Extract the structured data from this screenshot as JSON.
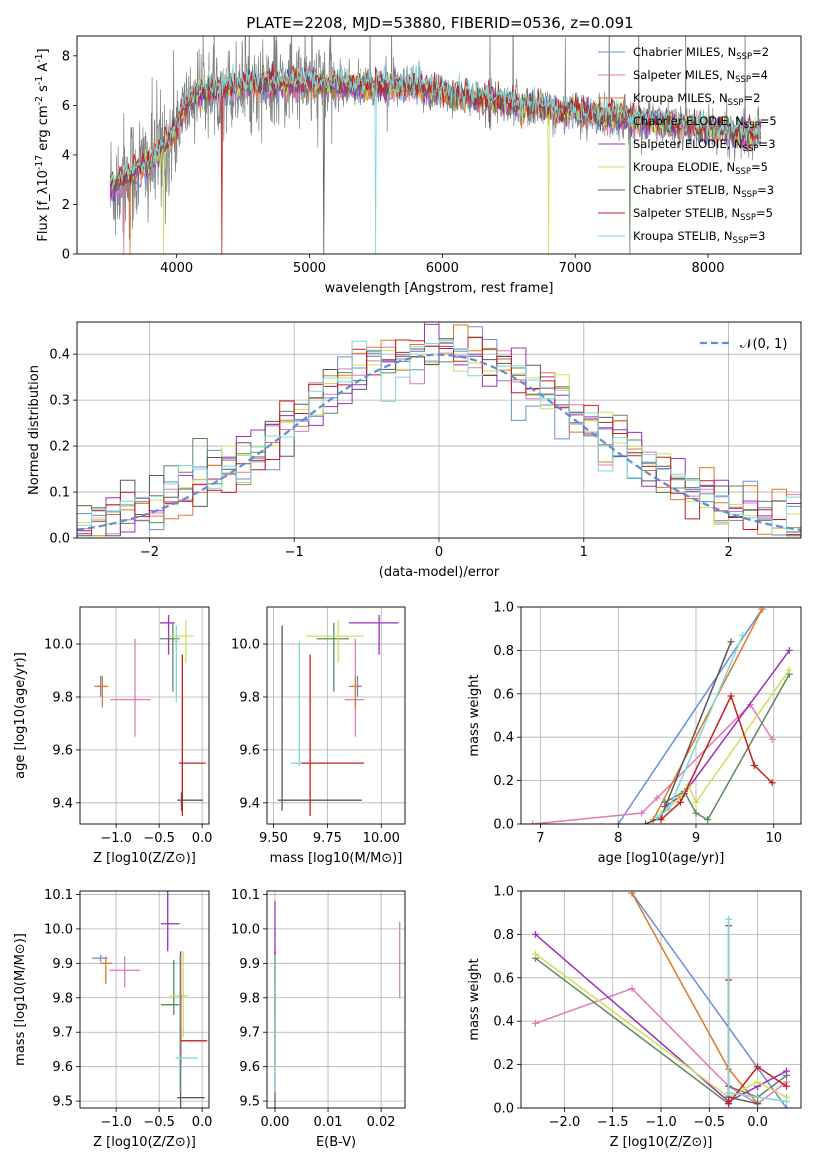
{
  "figure_title": "PLATE=2208, MJD=53880, FIBERID=0536, z=0.091",
  "colors": [
    "#6a8fd6",
    "#e07ab6",
    "#e0782a",
    "#5d8a5d",
    "#9b30c0",
    "#cde05a",
    "#5a5a5a",
    "#c42020",
    "#7fd8d8"
  ],
  "series_names": [
    "Chabrier MILES, N_SSP=2",
    "Salpeter MILES, N_SSP=4",
    "Kroupa MILES, N_SSP=2",
    "Chabrier ELODIE, N_SSP=5",
    "Salpeter ELODIE, N_SSP=3",
    "Kroupa ELODIE, N_SSP=5",
    "Chabrier STELIB, N_SSP=3",
    "Salpeter STELIB, N_SSP=5",
    "Kroupa STELIB, N_SSP=3"
  ],
  "chart_data": [
    {
      "id": "spectrum",
      "type": "line",
      "xlabel": "wavelength [Angstrom, rest frame]",
      "ylabel": "Flux [f_λ10^-17 erg cm^-2 s^-1 A^-1]",
      "xlim": [
        3250,
        8700
      ],
      "ylim": [
        0,
        8.8
      ],
      "xticks": [
        4000,
        5000,
        6000,
        7000,
        8000
      ],
      "yticks": [
        0,
        2,
        4,
        6,
        8
      ],
      "grid": false,
      "legend": "upper right",
      "continuum_knots": [
        [
          3500,
          2.7
        ],
        [
          3650,
          3.2
        ],
        [
          3800,
          3.6
        ],
        [
          3950,
          4.6
        ],
        [
          4050,
          5.8
        ],
        [
          4150,
          6.5
        ],
        [
          4500,
          6.8
        ],
        [
          4900,
          6.9
        ],
        [
          5300,
          6.8
        ],
        [
          5800,
          6.7
        ],
        [
          6200,
          6.3
        ],
        [
          6600,
          6.0
        ],
        [
          7000,
          5.7
        ],
        [
          7500,
          5.4
        ],
        [
          8000,
          5.0
        ],
        [
          8400,
          4.8
        ]
      ],
      "observed_color": "#808080"
    },
    {
      "id": "residual-histogram",
      "type": "histogram",
      "xlabel": "(data-model)/error",
      "ylabel": "Normed distribution",
      "xlim": [
        -2.5,
        2.5
      ],
      "ylim": [
        0,
        0.47
      ],
      "xticks": [
        -2,
        -1,
        0,
        1,
        2
      ],
      "yticks": [
        0.0,
        0.1,
        0.2,
        0.3,
        0.4
      ],
      "bin_width": 0.1,
      "grid": true,
      "legend": "upper right",
      "reference_curve": {
        "name": "𝒩(0, 1)",
        "mean": 0,
        "sigma": 1,
        "color": "#5b8fd6"
      }
    },
    {
      "id": "age-vs-Z",
      "type": "errorbar",
      "xlabel": "Z [log10(Z/Z⊙)]",
      "ylabel": "age [log10(age/yr)]",
      "xlim": [
        -1.42,
        0.08
      ],
      "ylim": [
        9.32,
        10.14
      ],
      "xticks": [
        -1.0,
        -0.5,
        0.0
      ],
      "yticks": [
        9.4,
        9.6,
        9.8,
        10.0
      ],
      "grid": true,
      "points": [
        {
          "x": -1.18,
          "y": 9.84,
          "xerr": [
            0.07,
            0.07
          ],
          "yerr": [
            0.04,
            0.04
          ]
        },
        {
          "x": -0.78,
          "y": 9.79,
          "xerr": [
            0.29,
            0.18
          ],
          "yerr": [
            0.14,
            0.23
          ]
        },
        {
          "x": -1.16,
          "y": 9.84,
          "xerr": [
            0.09,
            0.07
          ],
          "yerr": [
            0.08,
            0.04
          ]
        },
        {
          "x": -0.34,
          "y": 10.02,
          "xerr": [
            0.15,
            0.08
          ],
          "yerr": [
            0.2,
            0.06
          ]
        },
        {
          "x": -0.39,
          "y": 10.08,
          "xerr": [
            0.1,
            0.07
          ],
          "yerr": [
            0.12,
            0.03
          ]
        },
        {
          "x": -0.19,
          "y": 10.03,
          "xerr": [
            0.2,
            0.09
          ],
          "yerr": [
            0.1,
            0.06
          ]
        },
        {
          "x": -0.24,
          "y": 9.41,
          "xerr": [
            0.05,
            0.25
          ],
          "yerr": [
            0.04,
            0.03
          ]
        },
        {
          "x": -0.23,
          "y": 9.55,
          "xerr": [
            0.04,
            0.27
          ],
          "yerr": [
            0.2,
            0.41
          ]
        },
        {
          "x": -0.3,
          "y": 10.01,
          "xerr": [
            0.02,
            0.02
          ],
          "yerr": [
            0.23,
            0.06
          ]
        }
      ]
    },
    {
      "id": "age-vs-mass",
      "type": "errorbar",
      "xlabel": "mass [log10(M/M⊙)]",
      "ylabel": "",
      "xlim": [
        9.47,
        10.11
      ],
      "ylim": [
        9.32,
        10.14
      ],
      "xticks": [
        9.5,
        9.75,
        10.0
      ],
      "yticks": [
        9.4,
        9.6,
        9.8,
        10.0
      ],
      "grid": true,
      "points": [
        {
          "x": 9.89,
          "y": 9.84,
          "xerr": [
            0.01,
            0.02
          ],
          "yerr": [
            0.04,
            0.04
          ]
        },
        {
          "x": 9.88,
          "y": 9.79,
          "xerr": [
            0.05,
            0.04
          ],
          "yerr": [
            0.14,
            0.23
          ]
        },
        {
          "x": 9.88,
          "y": 9.84,
          "xerr": [
            0.03,
            0.02
          ],
          "yerr": [
            0.08,
            0.04
          ]
        },
        {
          "x": 9.78,
          "y": 10.02,
          "xerr": [
            0.08,
            0.07
          ],
          "yerr": [
            0.2,
            0.06
          ]
        },
        {
          "x": 9.99,
          "y": 10.08,
          "xerr": [
            0.14,
            0.09
          ],
          "yerr": [
            0.12,
            0.03
          ]
        },
        {
          "x": 9.8,
          "y": 10.03,
          "xerr": [
            0.15,
            0.12
          ],
          "yerr": [
            0.1,
            0.06
          ]
        },
        {
          "x": 9.54,
          "y": 9.41,
          "xerr": [
            0.02,
            0.37
          ],
          "yerr": [
            0.04,
            0.66
          ]
        },
        {
          "x": 9.67,
          "y": 9.55,
          "xerr": [
            0.05,
            0.25
          ],
          "yerr": [
            0.2,
            0.41
          ]
        },
        {
          "x": 9.62,
          "y": 9.55,
          "xerr": [
            0.04,
            0.01
          ],
          "yerr": [
            0.01,
            0.46
          ]
        }
      ]
    },
    {
      "id": "weight-vs-age",
      "type": "line",
      "xlabel": "age [log10(age/yr)]",
      "ylabel": "mass weight",
      "xlim": [
        6.75,
        10.35
      ],
      "ylim": [
        0,
        1
      ],
      "xticks": [
        7,
        8,
        9,
        10
      ],
      "yticks": [
        0.0,
        0.2,
        0.4,
        0.6,
        0.8,
        1.0
      ],
      "grid": true,
      "series": [
        {
          "ages": [
            8.0,
            9.85
          ],
          "weights": [
            0.0,
            0.99
          ]
        },
        {
          "ages": [
            6.9,
            8.3,
            8.5,
            9.7,
            9.98
          ],
          "weights": [
            0.0,
            0.05,
            0.12,
            0.55,
            0.39
          ]
        },
        {
          "ages": [
            8.45,
            9.85
          ],
          "weights": [
            0.02,
            0.99
          ]
        },
        {
          "ages": [
            8.6,
            8.85,
            9.0,
            9.15,
            10.2
          ],
          "weights": [
            0.1,
            0.15,
            0.05,
            0.02,
            0.69
          ]
        },
        {
          "ages": [
            8.6,
            8.85,
            10.2
          ],
          "weights": [
            0.08,
            0.14,
            0.8
          ]
        },
        {
          "ages": [
            8.55,
            8.8,
            8.9,
            9.0,
            10.2
          ],
          "weights": [
            0.05,
            0.12,
            0.18,
            0.1,
            0.71
          ]
        },
        {
          "ages": [
            8.35,
            8.55,
            9.45
          ],
          "weights": [
            0.0,
            0.03,
            0.84
          ]
        },
        {
          "ages": [
            8.55,
            8.8,
            9.45,
            9.75,
            9.98
          ],
          "weights": [
            0.02,
            0.1,
            0.59,
            0.27,
            0.19
          ]
        },
        {
          "ages": [
            8.5,
            8.65,
            9.6
          ],
          "weights": [
            0.03,
            0.07,
            0.87
          ]
        }
      ]
    },
    {
      "id": "mass-vs-Z",
      "type": "errorbar",
      "xlabel": "Z [log10(Z/Z⊙)]",
      "ylabel": "mass [log10(M/M⊙)]",
      "xlim": [
        -1.42,
        0.08
      ],
      "ylim": [
        9.48,
        10.11
      ],
      "xticks": [
        -1.0,
        -0.5,
        0.0
      ],
      "yticks": [
        9.5,
        9.6,
        9.7,
        9.8,
        9.9,
        10.0,
        10.1
      ],
      "grid": true,
      "points": [
        {
          "x": -1.18,
          "y": 9.915,
          "xerr": [
            0.1,
            0.08
          ],
          "yerr": [
            0.01,
            0.01
          ]
        },
        {
          "x": -0.9,
          "y": 9.88,
          "xerr": [
            0.18,
            0.18
          ],
          "yerr": [
            0.05,
            0.04
          ]
        },
        {
          "x": -1.12,
          "y": 9.9,
          "xerr": [
            0.07,
            0.07
          ],
          "yerr": [
            0.06,
            0.02
          ]
        },
        {
          "x": -0.33,
          "y": 9.78,
          "xerr": [
            0.15,
            0.08
          ],
          "yerr": [
            0.03,
            0.13
          ]
        },
        {
          "x": -0.4,
          "y": 10.015,
          "xerr": [
            0.08,
            0.14
          ],
          "yerr": [
            0.08,
            0.1
          ]
        },
        {
          "x": -0.22,
          "y": 9.805,
          "xerr": [
            0.16,
            0.06
          ],
          "yerr": [
            0.12,
            0.13
          ]
        },
        {
          "x": -0.25,
          "y": 9.51,
          "xerr": [
            0.04,
            0.28
          ],
          "yerr": [
            0.03,
            0.3
          ]
        },
        {
          "x": -0.25,
          "y": 9.675,
          "xerr": [
            0.02,
            0.31
          ],
          "yerr": [
            0.07,
            0.26
          ]
        },
        {
          "x": -0.26,
          "y": 9.625,
          "xerr": [
            0.05,
            0.21
          ],
          "yerr": [
            0.1,
            0.3
          ]
        }
      ]
    },
    {
      "id": "mass-vs-EBV",
      "type": "errorbar",
      "xlabel": "E(B-V)",
      "ylabel": "",
      "xlim": [
        -0.0015,
        0.0245
      ],
      "ylim": [
        9.48,
        10.11
      ],
      "xticks": [
        0.0,
        0.01,
        0.02
      ],
      "yticks": [
        9.5,
        9.6,
        9.7,
        9.8,
        9.9,
        10.0,
        10.1
      ],
      "grid": true,
      "points": [
        {
          "x": 0.0,
          "y": 9.915,
          "xerr": [
            0,
            0
          ],
          "yerr": [
            0.01,
            0.01
          ]
        },
        {
          "x": 0.0235,
          "y": 9.88,
          "xerr": [
            0,
            0
          ],
          "yerr": [
            0.08,
            0.14
          ]
        },
        {
          "x": 0.0,
          "y": 9.9,
          "xerr": [
            0,
            0
          ],
          "yerr": [
            0.06,
            0.02
          ]
        },
        {
          "x": 0.0,
          "y": 9.78,
          "xerr": [
            0,
            0
          ],
          "yerr": [
            0.03,
            0.13
          ]
        },
        {
          "x": 0.0,
          "y": 9.95,
          "xerr": [
            0,
            0
          ],
          "yerr": [
            0.12,
            0.13
          ]
        },
        {
          "x": 0.0,
          "y": 9.805,
          "xerr": [
            0,
            0
          ],
          "yerr": [
            0.12,
            0.13
          ]
        },
        {
          "x": 0.0,
          "y": 9.51,
          "xerr": [
            0,
            0
          ],
          "yerr": [
            0.03,
            0.3
          ]
        },
        {
          "x": 0.0,
          "y": 9.675,
          "xerr": [
            0,
            0
          ],
          "yerr": [
            0.07,
            0.26
          ]
        },
        {
          "x": 0.0,
          "y": 9.625,
          "xerr": [
            0,
            0
          ],
          "yerr": [
            0.1,
            0.3
          ]
        }
      ]
    },
    {
      "id": "weight-vs-Z",
      "type": "line",
      "xlabel": "Z [log10(Z/Z⊙)]",
      "ylabel": "mass weight",
      "xlim": [
        -2.45,
        0.45
      ],
      "ylim": [
        0,
        1
      ],
      "xticks": [
        -2.0,
        -1.5,
        -1.0,
        -0.5,
        0.0
      ],
      "yticks": [
        0.0,
        0.2,
        0.4,
        0.6,
        0.8,
        1.0
      ],
      "grid": true,
      "series": [
        {
          "Z": [
            -1.3,
            0.3
          ],
          "weights": [
            0.99,
            0.0
          ]
        },
        {
          "Z": [
            -2.3,
            -1.3,
            -0.3,
            0.0,
            0.3
          ],
          "weights": [
            0.39,
            0.55,
            0.1,
            0.02,
            0.12
          ]
        },
        {
          "Z": [
            -1.3,
            -0.3,
            0.0
          ],
          "weights": [
            0.99,
            0.18,
            0.02
          ]
        },
        {
          "Z": [
            -2.3,
            -0.3,
            -0.3,
            0.0,
            0.3
          ],
          "weights": [
            0.69,
            0.02,
            0.1,
            0.05,
            0.15
          ]
        },
        {
          "Z": [
            -2.3,
            -0.3,
            0.0,
            0.3
          ],
          "weights": [
            0.8,
            0.03,
            0.1,
            0.17
          ]
        },
        {
          "Z": [
            -2.3,
            -0.3,
            0.0,
            0.3
          ],
          "weights": [
            0.71,
            0.05,
            0.12,
            0.05
          ]
        },
        {
          "Z": [
            -0.3,
            -0.3,
            0.0
          ],
          "weights": [
            0.84,
            0.05,
            0.02
          ]
        },
        {
          "Z": [
            -0.3,
            -0.3,
            0.0,
            0.3
          ],
          "weights": [
            0.59,
            0.02,
            0.19,
            0.1
          ]
        },
        {
          "Z": [
            -0.3,
            -0.3,
            0.3
          ],
          "weights": [
            0.87,
            0.07,
            0.03
          ]
        }
      ]
    }
  ]
}
